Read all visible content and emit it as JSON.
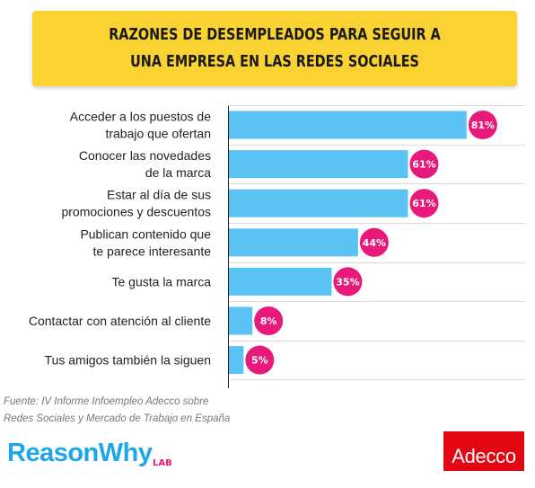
{
  "title": "RAZONES DE DESEMPLEADOS PARA SEGUIR A UNA EMPRESA EN LAS REDES SOCIALES",
  "chart_data": {
    "type": "bar",
    "orientation": "horizontal",
    "categories": [
      [
        "Acceder a los puestos de",
        "trabajo que ofertan"
      ],
      [
        "Conocer las novedades",
        "de la marca"
      ],
      [
        "Estar al día de sus",
        "promociones y descuentos"
      ],
      [
        "Publican contenido que",
        "te parece interesante"
      ],
      [
        "Te gusta la marca"
      ],
      [
        "Contactar con atención al cliente"
      ],
      [
        "Tus amigos también la siguen"
      ]
    ],
    "values": [
      81,
      61,
      61,
      44,
      35,
      8,
      5
    ],
    "value_labels": [
      "81%",
      "61%",
      "61%",
      "44%",
      "35%",
      "8%",
      "5%"
    ],
    "xlim": [
      0,
      100
    ],
    "grid": true,
    "bar_color": "#5bc2f4",
    "badge_color": "#e8197a"
  },
  "source": {
    "line1": "Fuente: IV Informe Infoempleo Adecco sobre",
    "line2": "Redes Sociales y Mercado de Trabajo en España"
  },
  "logos": {
    "reasonwhy": "ReasonWhy",
    "reasonwhy_sub": "LAB",
    "adecco": "Adecco"
  }
}
